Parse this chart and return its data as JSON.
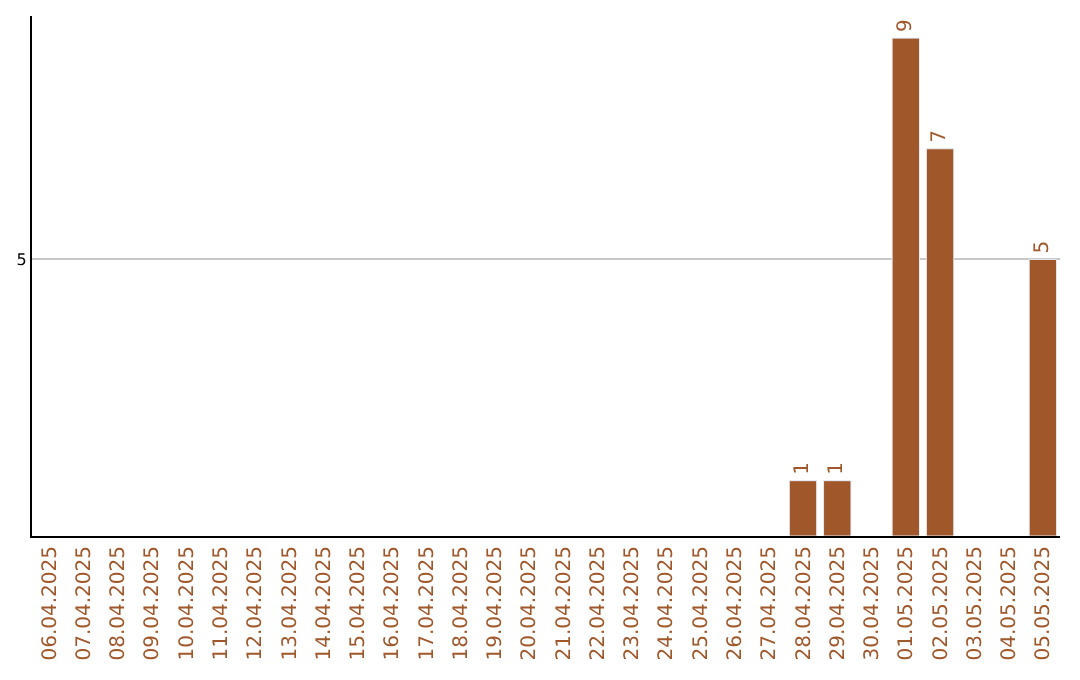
{
  "chart_data": {
    "type": "bar",
    "categories": [
      "06.04.2025",
      "07.04.2025",
      "08.04.2025",
      "09.04.2025",
      "10.04.2025",
      "11.04.2025",
      "12.04.2025",
      "13.04.2025",
      "14.04.2025",
      "15.04.2025",
      "16.04.2025",
      "17.04.2025",
      "18.04.2025",
      "19.04.2025",
      "20.04.2025",
      "21.04.2025",
      "22.04.2025",
      "23.04.2025",
      "24.04.2025",
      "25.04.2025",
      "26.04.2025",
      "27.04.2025",
      "28.04.2025",
      "29.04.2025",
      "30.04.2025",
      "01.05.2025",
      "02.05.2025",
      "03.05.2025",
      "04.05.2025",
      "05.05.2025"
    ],
    "values": [
      null,
      null,
      null,
      null,
      null,
      null,
      null,
      null,
      null,
      null,
      null,
      null,
      null,
      null,
      null,
      null,
      null,
      null,
      null,
      null,
      null,
      null,
      1,
      1,
      null,
      9,
      7,
      null,
      null,
      5
    ],
    "color": "#a0572a",
    "ylim": [
      0,
      9.4
    ],
    "yticks": [
      5
    ],
    "grid": "y",
    "data_labels": true,
    "legend": false
  }
}
